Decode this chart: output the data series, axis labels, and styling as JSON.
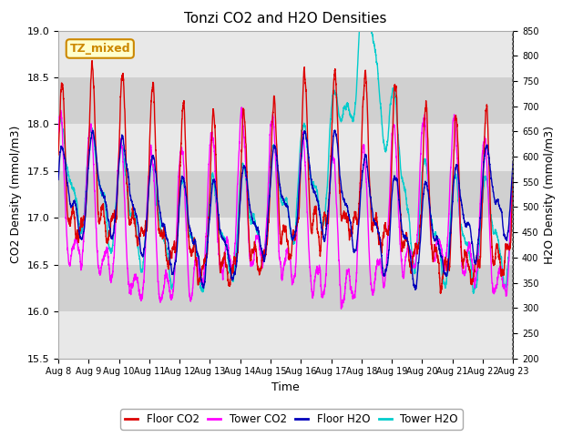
{
  "title": "Tonzi CO2 and H2O Densities",
  "xlabel": "Time",
  "ylabel_left": "CO2 Density (mmol/m3)",
  "ylabel_right": "H2O Density (mmol/m3)",
  "ylim_left": [
    15.5,
    19.0
  ],
  "ylim_right": [
    200,
    850
  ],
  "xtick_labels": [
    "Aug 8",
    "Aug 9",
    "Aug 10",
    "Aug 11",
    "Aug 12",
    "Aug 13",
    "Aug 14",
    "Aug 15",
    "Aug 16",
    "Aug 17",
    "Aug 18",
    "Aug 19",
    "Aug 20",
    "Aug 21",
    "Aug 22",
    "Aug 23"
  ],
  "yticks_left": [
    15.5,
    16.0,
    16.5,
    17.0,
    17.5,
    18.0,
    18.5,
    19.0
  ],
  "yticks_right": [
    200,
    250,
    300,
    350,
    400,
    450,
    500,
    550,
    600,
    650,
    700,
    750,
    800,
    850
  ],
  "colors": {
    "floor_co2": "#dd0000",
    "tower_co2": "#ff00ff",
    "floor_h2o": "#0000bb",
    "tower_h2o": "#00cccc"
  },
  "legend_label": "TZ_mixed",
  "legend_label_color": "#cc8800",
  "legend_label_bg": "#ffffcc",
  "band_colors": [
    "#e8e8e8",
    "#d0d0d0"
  ],
  "n_points": 5000,
  "seed": 42
}
